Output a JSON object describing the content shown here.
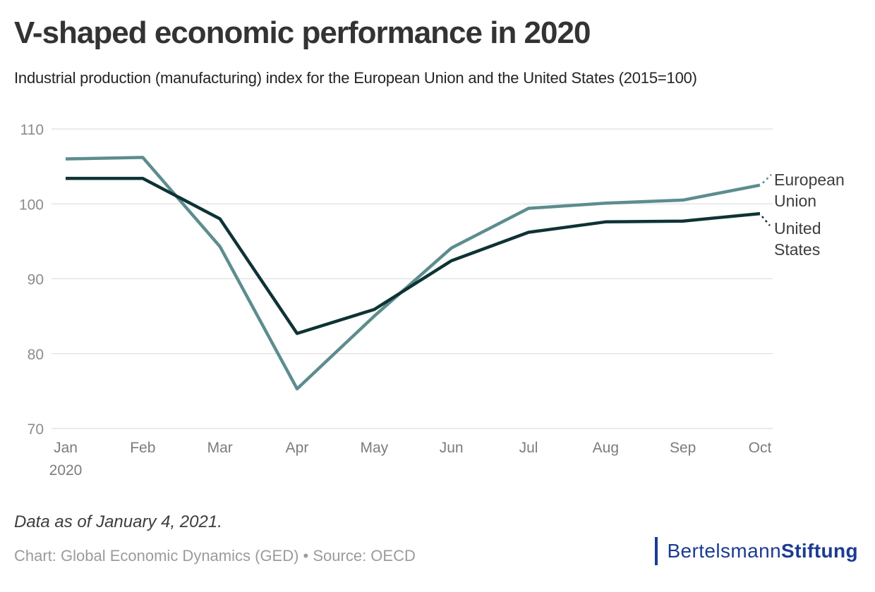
{
  "chart_data": {
    "type": "line",
    "title": "V-shaped economic performance in 2020",
    "subtitle": "Industrial production (manufacturing) index for the European Union and the United States (2015=100)",
    "categories": [
      "Jan",
      "Feb",
      "Mar",
      "Apr",
      "May",
      "Jun",
      "Jul",
      "Aug",
      "Sep",
      "Oct"
    ],
    "x_year_label": "2020",
    "series": [
      {
        "name": "European Union",
        "color": "#5d8d8e",
        "values": [
          106.0,
          106.2,
          94.3,
          75.3,
          85.0,
          94.1,
          99.4,
          100.1,
          100.5,
          102.5
        ]
      },
      {
        "name": "United States",
        "color": "#0e3334",
        "values": [
          103.4,
          103.4,
          98.0,
          82.7,
          85.9,
          92.4,
          96.2,
          97.6,
          97.7,
          98.7
        ]
      }
    ],
    "y_ticks": [
      110,
      100,
      90,
      80,
      70
    ],
    "ylim": [
      70,
      110
    ],
    "grid": true,
    "legend_position": "right-edge-labels",
    "xlabel": "",
    "ylabel": ""
  },
  "footer": {
    "note": "Data as of January 4, 2021.",
    "credit": "Chart: Global Economic Dynamics (GED) • Source: OECD"
  },
  "logo": {
    "name_regular": "Bertelsmann",
    "name_bold": "Stiftung",
    "color": "#1b3b93"
  },
  "colors": {
    "grid": "#e4e4e4",
    "y_axis_label": "#8c8c8c",
    "x_axis_label": "#7c7c7c",
    "title": "#333333",
    "subtitle": "#242424",
    "series_label": "#3d3d3d",
    "note": "#3d3d3d",
    "credit": "#9b9b9b"
  }
}
